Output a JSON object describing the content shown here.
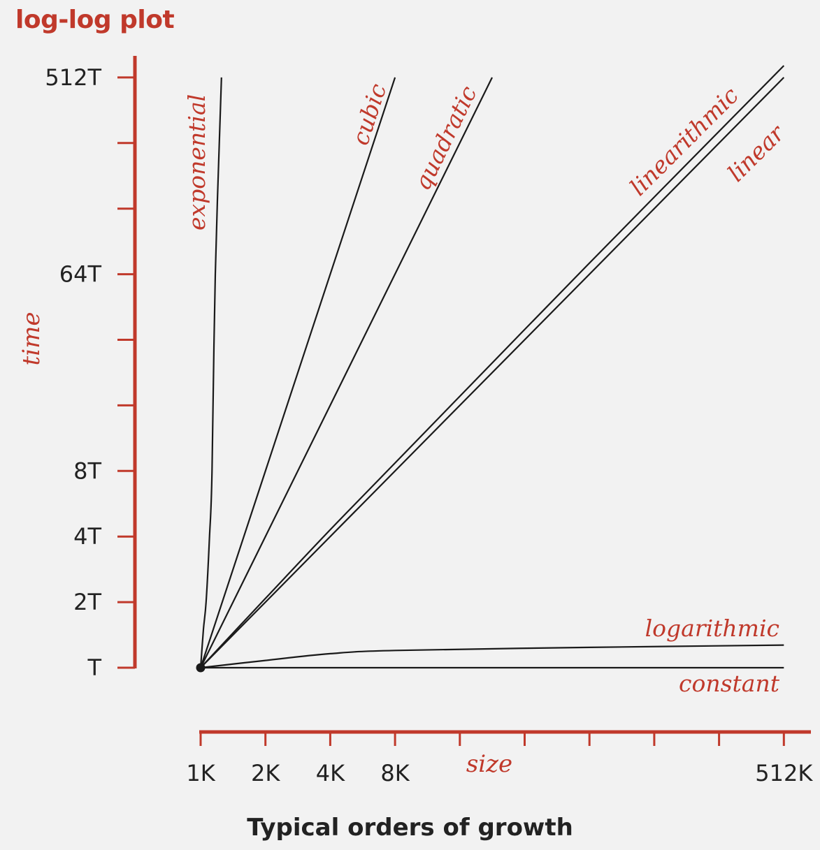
{
  "title": "log-log plot",
  "caption": "Typical orders of growth",
  "colors": {
    "axis": "#c0392b",
    "line": "#1a1a1a",
    "text": "#222222",
    "background": "#f2f2f2"
  },
  "chart_data": {
    "type": "line",
    "scale": "log-log",
    "xlabel": "size",
    "ylabel": "time",
    "x_ticks": [
      "1K",
      "2K",
      "4K",
      "8K",
      "",
      "",
      "",
      "",
      "",
      "512K"
    ],
    "y_ticks": [
      "T",
      "2T",
      "4T",
      "8T",
      "",
      "",
      "64T",
      "",
      "",
      "512T"
    ],
    "x_unit": "K",
    "y_unit": "T",
    "xlim": [
      1,
      512
    ],
    "ylim": [
      1,
      512
    ],
    "series": [
      {
        "name": "constant",
        "points": [
          [
            1,
            1
          ],
          [
            512,
            1
          ]
        ]
      },
      {
        "name": "logarithmic",
        "points": [
          [
            1,
            1
          ],
          [
            2,
            1.08
          ],
          [
            4,
            1.16
          ],
          [
            8,
            1.2
          ],
          [
            64,
            1.24
          ],
          [
            512,
            1.27
          ]
        ]
      },
      {
        "name": "linear",
        "points": [
          [
            1,
            1
          ],
          [
            512,
            512
          ]
        ]
      },
      {
        "name": "linearithmic",
        "points": [
          [
            1,
            1
          ],
          [
            2,
            2.08
          ],
          [
            4,
            4.3
          ],
          [
            8,
            8.7
          ],
          [
            64,
            72
          ],
          [
            512,
            580
          ]
        ]
      },
      {
        "name": "quadratic",
        "points": [
          [
            1,
            1
          ],
          [
            22.6,
            512
          ]
        ]
      },
      {
        "name": "cubic",
        "points": [
          [
            1,
            1
          ],
          [
            8,
            512
          ]
        ]
      },
      {
        "name": "exponential",
        "points": [
          [
            1,
            1
          ],
          [
            1.03,
            1.5
          ],
          [
            1.06,
            2
          ],
          [
            1.1,
            4
          ],
          [
            1.13,
            8
          ],
          [
            1.17,
            64
          ],
          [
            1.25,
            512
          ]
        ]
      }
    ]
  }
}
